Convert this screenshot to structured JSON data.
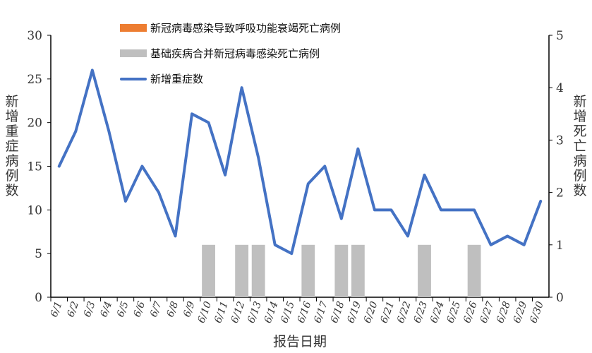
{
  "chart_data": {
    "type": "bar+line",
    "categories": [
      "6/1",
      "6/2",
      "6/3",
      "6/4",
      "6/5",
      "6/6",
      "6/7",
      "6/8",
      "6/9",
      "6/10",
      "6/11",
      "6/12",
      "6/13",
      "6/14",
      "6/15",
      "6/16",
      "6/17",
      "6/18",
      "6/19",
      "6/20",
      "6/21",
      "6/22",
      "6/23",
      "6/24",
      "6/25",
      "6/26",
      "6/27",
      "6/28",
      "6/29",
      "6/30"
    ],
    "xlabel": "报告日期",
    "ylabel": "新增重症病例数",
    "y2label": "新增死亡病例数",
    "ylim": [
      0,
      30
    ],
    "yticks": [
      0,
      5,
      10,
      15,
      20,
      25,
      30
    ],
    "y2lim": [
      0,
      5
    ],
    "y2ticks": [
      0,
      1,
      2,
      3,
      4,
      5
    ],
    "grid": false,
    "legend_position": "top",
    "series": [
      {
        "name": "新冠病毒感染导致呼吸功能衰竭死亡病例",
        "type": "bar",
        "axis": "right",
        "color": "#ED7D31",
        "values": [
          0,
          0,
          0,
          0,
          0,
          0,
          0,
          0,
          0,
          0,
          0,
          0,
          0,
          0,
          0,
          0,
          0,
          0,
          0,
          0,
          0,
          0,
          0,
          0,
          0,
          0,
          0,
          0,
          0,
          0
        ]
      },
      {
        "name": "基础疾病合并新冠病毒感染死亡病例",
        "type": "bar",
        "axis": "right",
        "color": "#BFBFBF",
        "values": [
          0,
          0,
          0,
          0,
          0,
          0,
          0,
          0,
          0,
          1,
          0,
          1,
          1,
          0,
          0,
          1,
          0,
          1,
          1,
          0,
          0,
          0,
          1,
          0,
          0,
          1,
          0,
          0,
          0,
          0
        ]
      },
      {
        "name": "新增重症数",
        "type": "line",
        "axis": "left",
        "color": "#4472C4",
        "values": [
          15,
          19,
          26,
          19,
          11,
          15,
          12,
          7,
          21,
          20,
          14,
          24,
          16,
          6,
          5,
          13,
          15,
          9,
          17,
          10,
          10,
          7,
          14,
          10,
          10,
          10,
          6,
          7,
          6,
          11
        ]
      }
    ]
  }
}
